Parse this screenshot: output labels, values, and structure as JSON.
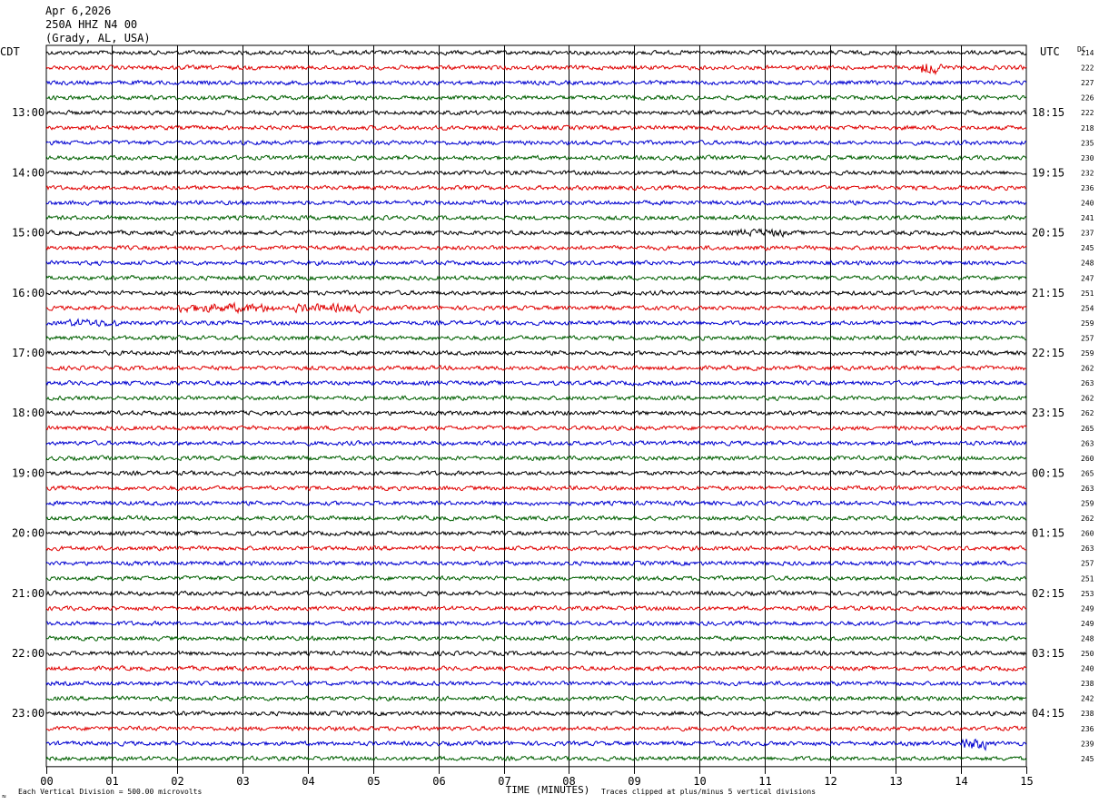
{
  "header": {
    "date": "Apr 6,2026",
    "station": "250A HHZ N4 00",
    "location": "(Grady, AL, USA)"
  },
  "left_axis_title": "CDT",
  "right_axis_title": "UTC",
  "dc_title": "DC",
  "footer": {
    "scale_note": "Each Vertical Division =  500.00 microvolts",
    "clip_note": "Traces clipped at plus/minus 5 vertical divisions",
    "corner_mark": "≈"
  },
  "colors": {
    "trace_cycle": [
      "#000000",
      "#e00000",
      "#0000d0",
      "#006000"
    ],
    "grid": "#000000"
  },
  "chart_data": {
    "type": "line",
    "xlabel": "TIME (MINUTES)",
    "x_ticks": [
      "00",
      "01",
      "02",
      "03",
      "04",
      "05",
      "06",
      "07",
      "08",
      "09",
      "10",
      "11",
      "12",
      "13",
      "14",
      "15"
    ],
    "xlim": [
      0,
      15
    ],
    "traces_per_hour": 4,
    "left_hour_labels": [
      "13:00",
      "14:00",
      "15:00",
      "16:00",
      "17:00",
      "18:00",
      "19:00",
      "20:00",
      "21:00",
      "22:00",
      "23:00"
    ],
    "right_hour_labels": [
      "18:15",
      "19:15",
      "20:15",
      "21:15",
      "22:15",
      "23:15",
      "00:15",
      "01:15",
      "02:15",
      "03:15",
      "04:15"
    ],
    "dc_offsets": [
      214,
      222,
      227,
      226,
      222,
      218,
      235,
      230,
      232,
      236,
      240,
      241,
      237,
      245,
      248,
      247,
      251,
      254,
      259,
      257,
      259,
      262,
      263,
      262,
      262,
      265,
      263,
      260,
      265,
      263,
      259,
      262,
      260,
      263,
      257,
      251,
      253,
      249,
      249,
      248,
      250,
      240,
      238,
      242,
      238,
      236,
      239,
      245
    ],
    "events": [
      {
        "trace": 1,
        "minute_start": 13.4,
        "minute_end": 13.7,
        "amp": 3.0
      },
      {
        "trace": 17,
        "minute_start": 2.0,
        "minute_end": 3.5,
        "amp": 2.2
      },
      {
        "trace": 17,
        "minute_start": 3.8,
        "minute_end": 4.8,
        "amp": 2.0
      },
      {
        "trace": 18,
        "minute_start": 0.3,
        "minute_end": 1.1,
        "amp": 1.8
      },
      {
        "trace": 12,
        "minute_start": 10.5,
        "minute_end": 11.3,
        "amp": 1.8
      },
      {
        "trace": 46,
        "minute_start": 14.0,
        "minute_end": 14.4,
        "amp": 2.8
      }
    ]
  }
}
